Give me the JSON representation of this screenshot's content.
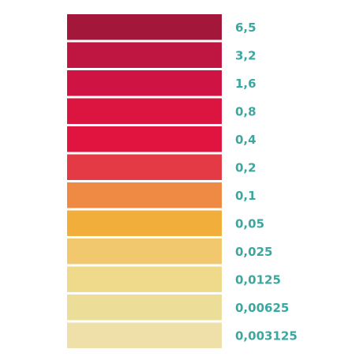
{
  "legend": {
    "items": [
      {
        "label": "6,5",
        "color": "#a3173a"
      },
      {
        "label": "3,2",
        "color": "#be1640"
      },
      {
        "label": "1,6",
        "color": "#cf1443"
      },
      {
        "label": "0,8",
        "color": "#dc1440"
      },
      {
        "label": "0,4",
        "color": "#e0143f"
      },
      {
        "label": "0,2",
        "color": "#e43a46"
      },
      {
        "label": "0,1",
        "color": "#ef8a45"
      },
      {
        "label": "0,05",
        "color": "#f2ae3b"
      },
      {
        "label": "0,025",
        "color": "#f2c86e"
      },
      {
        "label": "0,0125",
        "color": "#efd98a"
      },
      {
        "label": "0,00625",
        "color": "#ecdd98"
      },
      {
        "label": "0,003125",
        "color": "#eee0a8"
      }
    ]
  }
}
